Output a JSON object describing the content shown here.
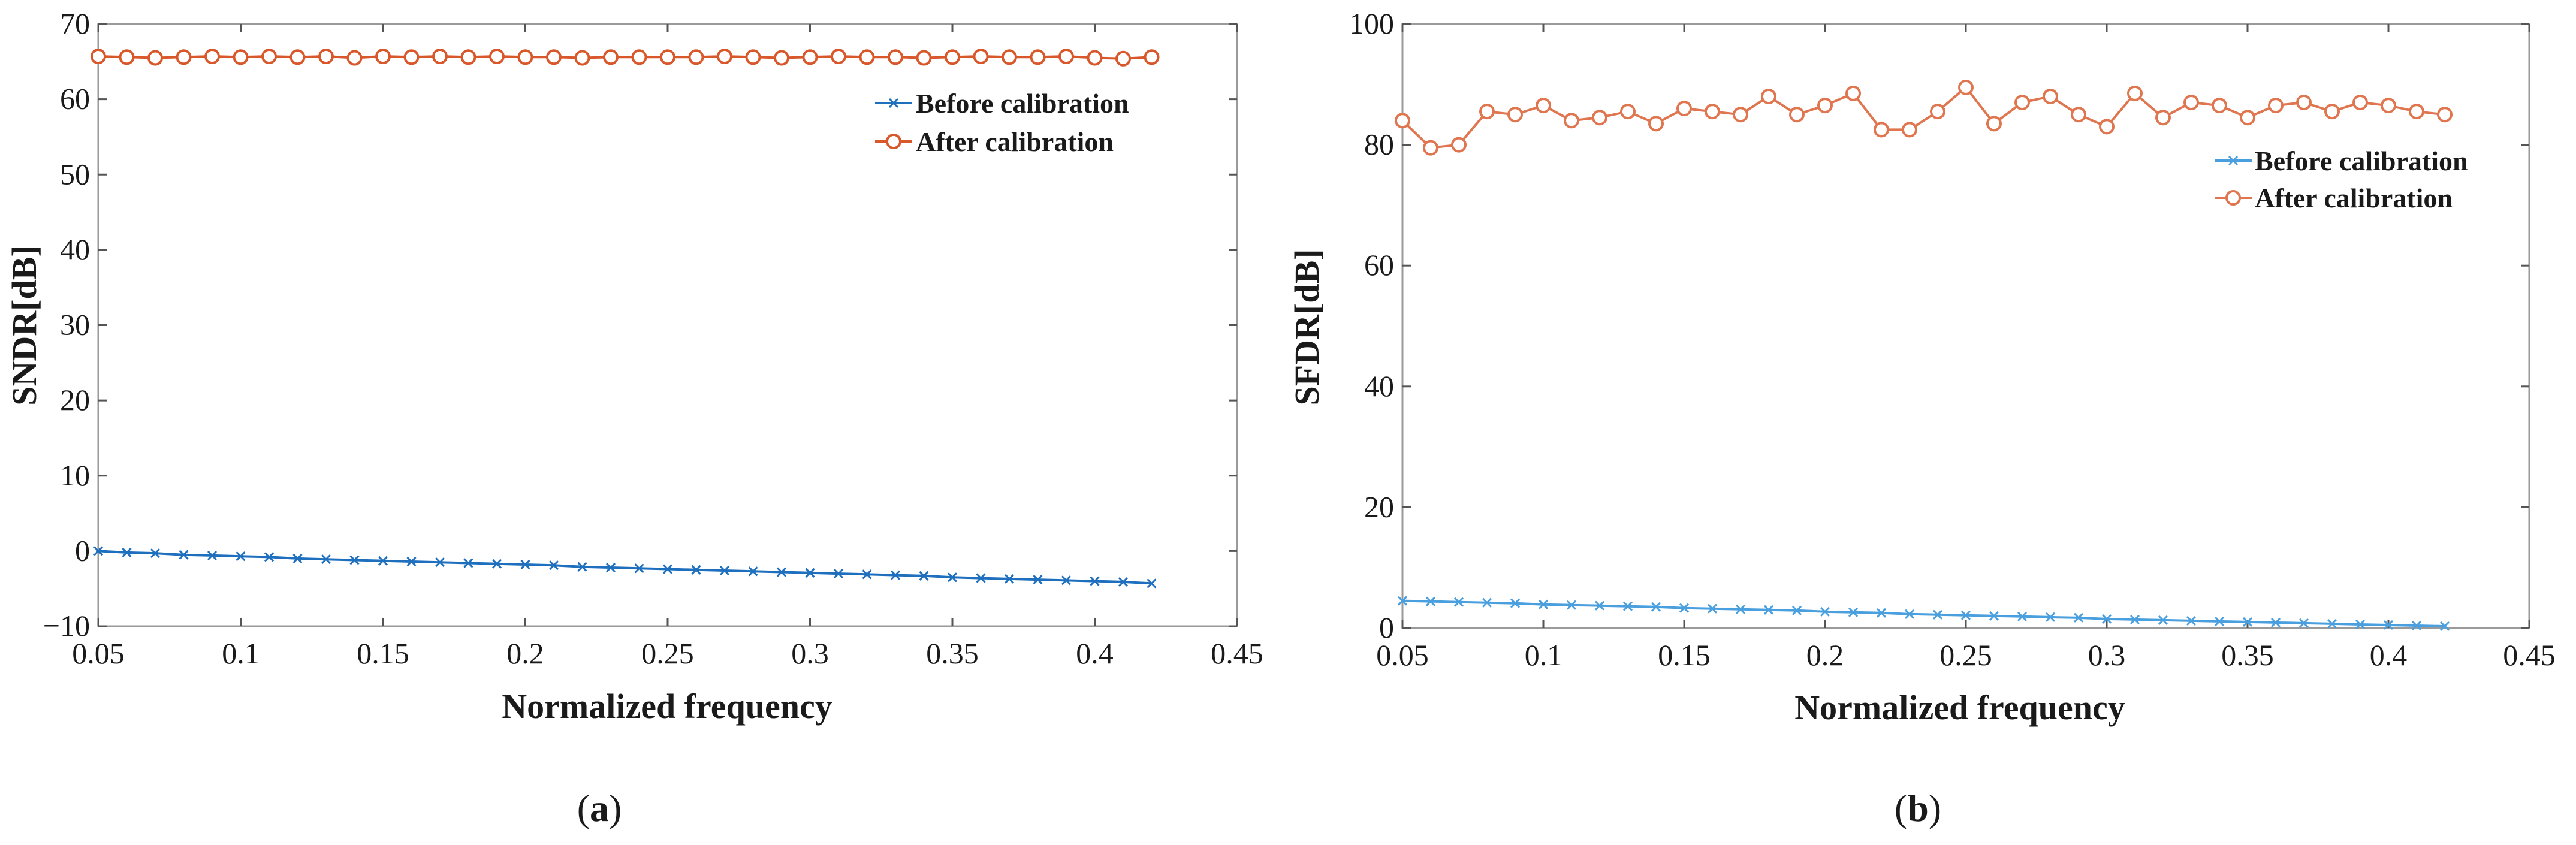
{
  "chart_data": [
    {
      "panel": "a",
      "type": "line",
      "panel_label_prefix": "(",
      "panel_label_letter": "a",
      "panel_label_suffix": ")",
      "xlabel": "Normalized frequency",
      "ylabel": "SNDR[dB]",
      "xlim": [
        0.05,
        0.45
      ],
      "ylim": [
        -10,
        70
      ],
      "xticks": [
        0.05,
        0.1,
        0.15,
        0.2,
        0.25,
        0.3,
        0.35,
        0.4,
        0.45
      ],
      "yticks": [
        -10,
        0,
        10,
        20,
        30,
        40,
        50,
        60,
        70
      ],
      "grid": false,
      "legend_position": "top-right",
      "x": [
        0.05,
        0.06,
        0.07,
        0.08,
        0.09,
        0.1,
        0.11,
        0.12,
        0.13,
        0.14,
        0.15,
        0.16,
        0.17,
        0.18,
        0.19,
        0.2,
        0.21,
        0.22,
        0.23,
        0.24,
        0.25,
        0.26,
        0.27,
        0.28,
        0.29,
        0.3,
        0.31,
        0.32,
        0.33,
        0.34,
        0.35,
        0.36,
        0.37,
        0.38,
        0.39,
        0.4,
        0.41,
        0.42
      ],
      "series": [
        {
          "name": "Before calibration",
          "color": "#1f6fbf",
          "marker": "x",
          "values": [
            0.0,
            -0.2,
            -0.3,
            -0.5,
            -0.6,
            -0.7,
            -0.8,
            -1.0,
            -1.1,
            -1.2,
            -1.3,
            -1.4,
            -1.5,
            -1.6,
            -1.7,
            -1.8,
            -1.9,
            -2.1,
            -2.2,
            -2.3,
            -2.4,
            -2.5,
            -2.6,
            -2.7,
            -2.8,
            -2.9,
            -3.0,
            -3.1,
            -3.2,
            -3.3,
            -3.5,
            -3.6,
            -3.7,
            -3.8,
            -3.9,
            -4.0,
            -4.1,
            -4.3
          ]
        },
        {
          "name": "After calibration",
          "color": "#d9582b",
          "marker": "o",
          "values": [
            65.7,
            65.6,
            65.5,
            65.6,
            65.7,
            65.6,
            65.7,
            65.6,
            65.7,
            65.5,
            65.7,
            65.6,
            65.7,
            65.6,
            65.7,
            65.6,
            65.6,
            65.5,
            65.6,
            65.6,
            65.6,
            65.6,
            65.7,
            65.6,
            65.5,
            65.6,
            65.7,
            65.6,
            65.6,
            65.5,
            65.6,
            65.7,
            65.6,
            65.6,
            65.7,
            65.5,
            65.4,
            65.6
          ]
        }
      ]
    },
    {
      "panel": "b",
      "type": "line",
      "panel_label_prefix": "(",
      "panel_label_letter": "b",
      "panel_label_suffix": ")",
      "xlabel": "Normalized frequency",
      "ylabel": "SFDR[dB]",
      "xlim": [
        0.05,
        0.45
      ],
      "ylim": [
        0,
        100
      ],
      "xticks": [
        0.05,
        0.1,
        0.15,
        0.2,
        0.25,
        0.3,
        0.35,
        0.4,
        0.45
      ],
      "yticks": [
        0,
        20,
        40,
        60,
        80,
        100
      ],
      "grid": false,
      "legend_position": "upper-right",
      "x": [
        0.05,
        0.06,
        0.07,
        0.08,
        0.09,
        0.1,
        0.11,
        0.12,
        0.13,
        0.14,
        0.15,
        0.16,
        0.17,
        0.18,
        0.19,
        0.2,
        0.21,
        0.22,
        0.23,
        0.24,
        0.25,
        0.26,
        0.27,
        0.28,
        0.29,
        0.3,
        0.31,
        0.32,
        0.33,
        0.34,
        0.35,
        0.36,
        0.37,
        0.38,
        0.39,
        0.4,
        0.41,
        0.42
      ],
      "series": [
        {
          "name": "Before calibration",
          "color": "#4a9fdf",
          "marker": "x",
          "values": [
            4.5,
            4.4,
            4.3,
            4.2,
            4.1,
            3.9,
            3.8,
            3.7,
            3.6,
            3.5,
            3.3,
            3.2,
            3.1,
            3.0,
            2.9,
            2.7,
            2.6,
            2.5,
            2.3,
            2.2,
            2.1,
            2.0,
            1.9,
            1.8,
            1.7,
            1.5,
            1.4,
            1.3,
            1.2,
            1.1,
            1.0,
            0.9,
            0.8,
            0.7,
            0.6,
            0.5,
            0.4,
            0.3
          ]
        },
        {
          "name": "After calibration",
          "color": "#e0764f",
          "marker": "o",
          "values": [
            84.0,
            79.5,
            80.0,
            85.5,
            85.0,
            86.5,
            84.0,
            84.5,
            85.5,
            83.5,
            86.0,
            85.5,
            85.0,
            88.0,
            85.0,
            86.5,
            88.5,
            82.5,
            82.5,
            85.5,
            89.5,
            83.5,
            87.0,
            88.0,
            85.0,
            83.0,
            88.5,
            84.5,
            87.0,
            86.5,
            84.5,
            86.5,
            87.0,
            85.5,
            87.0,
            86.5,
            85.5,
            85.0
          ]
        }
      ]
    }
  ]
}
